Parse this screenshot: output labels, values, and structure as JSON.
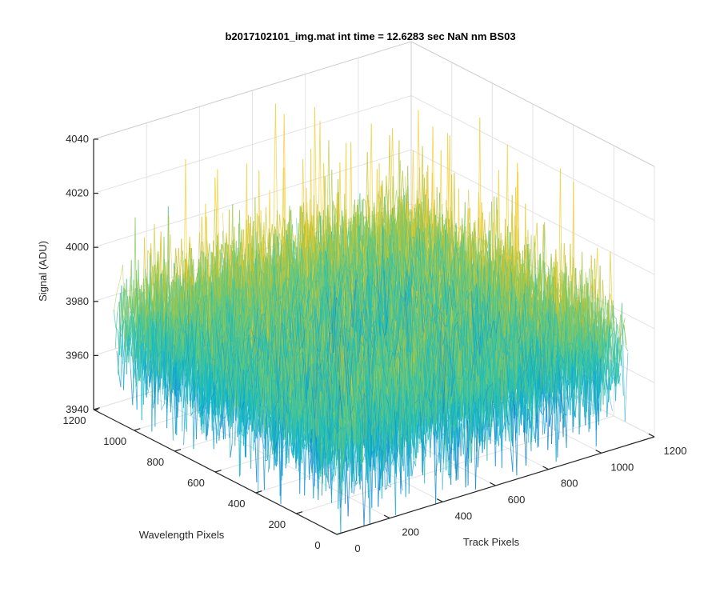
{
  "chart_data": {
    "type": "surface",
    "title": "b2017102101_img.mat int time = 12.6283 sec  NaN nm BS03",
    "xlabel": "Track Pixels",
    "ylabel": "Wavelength Pixels",
    "zlabel": "Signal (ADU)",
    "xlim": [
      0,
      1200
    ],
    "ylim": [
      0,
      1200
    ],
    "zlim": [
      3940,
      4040
    ],
    "xticks": [
      "0",
      "200",
      "400",
      "600",
      "800",
      "1000",
      "1200"
    ],
    "yticks": [
      "0",
      "200",
      "400",
      "600",
      "800",
      "1000",
      "1200"
    ],
    "zticks": [
      "3940",
      "3960",
      "3980",
      "4000",
      "4020",
      "4040"
    ],
    "data_extent": {
      "x": [
        0,
        1100
      ],
      "y": [
        0,
        1100
      ]
    },
    "signal_mean": 3975,
    "signal_spread": 25,
    "grid": true,
    "colormap": "parula",
    "colormap_colors": [
      "#0072bd",
      "#1492d4",
      "#11b6c7",
      "#44c69c",
      "#8ac85c",
      "#c9c02d",
      "#f0cd30"
    ]
  }
}
